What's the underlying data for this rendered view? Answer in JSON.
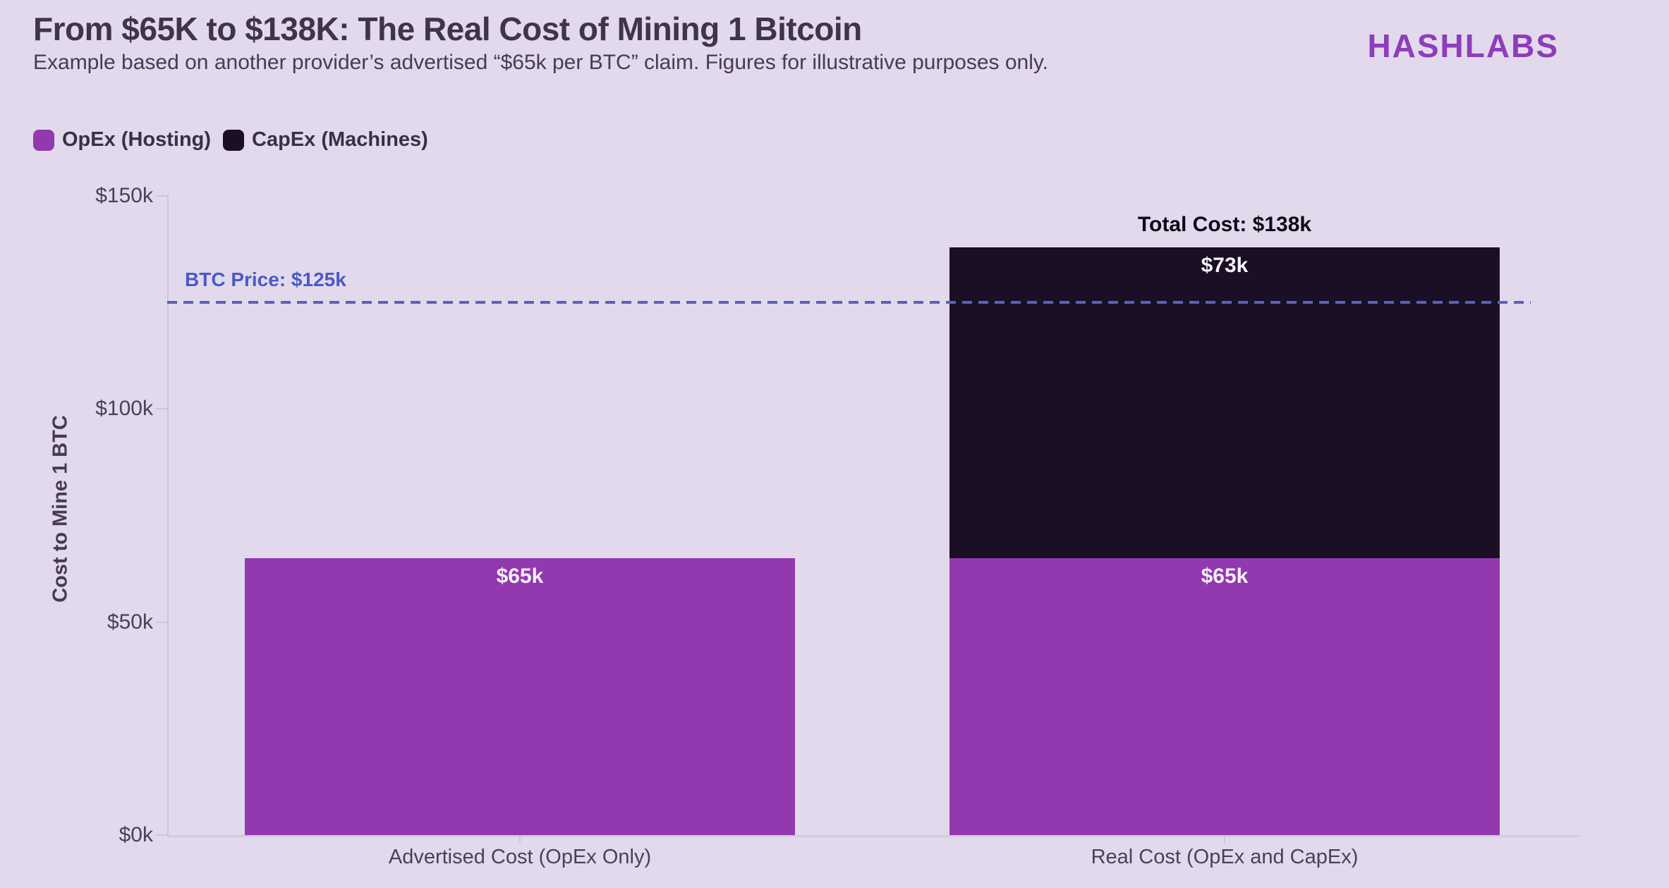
{
  "header": {
    "title": "From $65K to $138K: The Real Cost of Mining 1 Bitcoin",
    "subtitle": "Example based on another provider’s advertised “$65k per BTC” claim. Figures for illustrative purposes only.",
    "brand": "HASHLABS"
  },
  "colors": {
    "background": "#e2d9ec",
    "brand": "#8e3dbb",
    "opex": "#9239af",
    "capex": "#1b0f26",
    "reference_line": "#5a62b4",
    "reference_text": "#4a5ac5"
  },
  "chart_data": {
    "type": "bar",
    "stacked": true,
    "title": "From $65K to $138K: The Real Cost of Mining 1 Bitcoin",
    "categories": [
      "Advertised Cost (OpEx Only)",
      "Real Cost (OpEx and CapEx)"
    ],
    "series": [
      {
        "name": "OpEx (Hosting)",
        "color": "#9239af",
        "values": [
          65,
          65
        ],
        "labels": [
          "$65k",
          "$65k"
        ]
      },
      {
        "name": "CapEx (Machines)",
        "color": "#1b0f26",
        "values": [
          0,
          73
        ],
        "labels": [
          "",
          "$73k"
        ]
      }
    ],
    "totals": [
      {
        "category_index": 1,
        "text": "Total Cost: $138k",
        "value": 138
      }
    ],
    "reference_line": {
      "value": 125,
      "label": "BTC Price: $125k",
      "style": "dashed"
    },
    "xlabel": "",
    "ylabel": "Cost to Mine 1 BTC",
    "ylim": [
      0,
      150
    ],
    "yticks": [
      {
        "value": 0,
        "label": "$0k"
      },
      {
        "value": 50,
        "label": "$50k"
      },
      {
        "value": 100,
        "label": "$100k"
      },
      {
        "value": 150,
        "label": "$150k"
      }
    ],
    "grid": false,
    "legend_position": "top-left"
  }
}
